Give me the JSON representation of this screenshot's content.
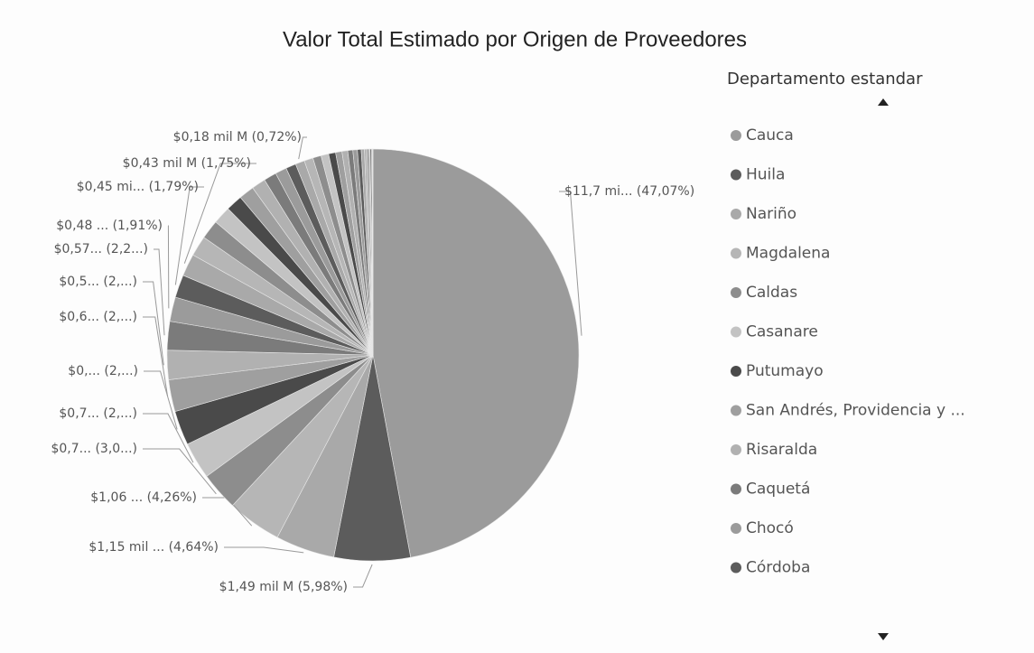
{
  "chart_data": {
    "type": "pie",
    "title": "Valor Total Estimado por Origen de Proveedores",
    "legend_title": "Departamento estandar",
    "categories": [
      "Cauca",
      "Huila",
      "Nariño",
      "Magdalena",
      "Caldas",
      "Casanare",
      "Putumayo",
      "San Andrés, Providencia y ...",
      "Risaralda",
      "Caquetá",
      "Chocó",
      "Córdoba",
      null,
      null,
      null,
      null,
      null,
      null,
      null,
      null,
      null,
      null,
      null,
      null,
      null,
      null,
      null,
      null,
      null,
      null,
      null,
      null,
      null,
      null,
      null,
      null,
      null,
      null,
      null
    ],
    "values": [
      47.07,
      5.98,
      4.64,
      4.26,
      3.02,
      2.9,
      2.7,
      2.5,
      2.3,
      2.25,
      1.91,
      1.79,
      1.75,
      1.6,
      1.5,
      1.4,
      1.3,
      1.2,
      1.1,
      1.0,
      0.9,
      0.8,
      0.72,
      0.7,
      0.65,
      0.6,
      0.55,
      0.5,
      0.45,
      0.4,
      0.35,
      0.3,
      0.25,
      0.2,
      0.15,
      0.1,
      0.1,
      0.06,
      0.05
    ],
    "value_labels": [
      "$11,7 mi... (47,07%)",
      "$1,49 mil M (5,98%)",
      "$1,15 mil ... (4,64%)",
      "$1,06 ... (4,26%)",
      "$0,7... (3,0...)",
      "$0,7... (2,...)",
      "$0,... (2,...)",
      "$0,6... (2,...)",
      "$0,5... (2,...)",
      "$0,57... (2,2...)",
      "$0,48 ... (1,91%)",
      "$0,45 mi... (1,79%)",
      "$0,43 mil M (1,75%)",
      null,
      null,
      null,
      null,
      null,
      null,
      null,
      null,
      null,
      "$0,18 mil M (0,72%)",
      null,
      null,
      null,
      null,
      null,
      null,
      null,
      null,
      null,
      null,
      null,
      null,
      null,
      null,
      null,
      null
    ],
    "palette": [
      "#9b9b9b",
      "#5c5c5c",
      "#a9a9a9",
      "#b6b6b6",
      "#8d8d8d",
      "#c3c3c3",
      "#4a4a4a",
      "#9f9f9f",
      "#b1b1b1",
      "#7b7b7b"
    ],
    "legend": "right"
  }
}
